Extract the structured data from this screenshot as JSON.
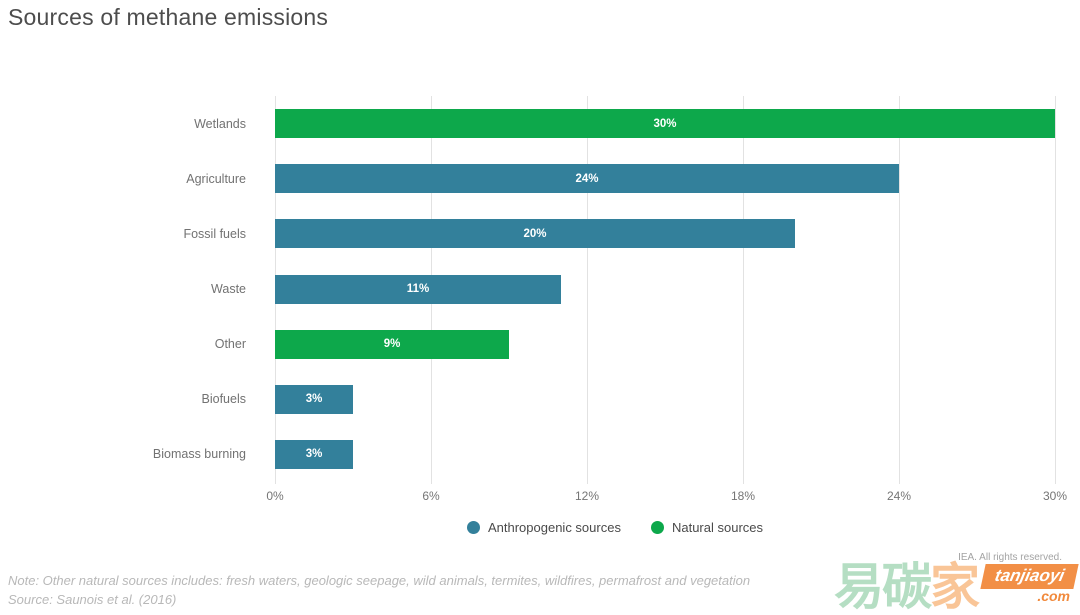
{
  "title": "Sources of methane emissions",
  "chart_data": {
    "type": "bar",
    "orientation": "horizontal",
    "title": "Sources of methane emissions",
    "categories": [
      "Wetlands",
      "Agriculture",
      "Fossil fuels",
      "Waste",
      "Other",
      "Biofuels",
      "Biomass burning"
    ],
    "values": [
      30,
      24,
      20,
      11,
      9,
      3,
      3
    ],
    "value_labels": [
      "30%",
      "24%",
      "20%",
      "11%",
      "9%",
      "3%",
      "3%"
    ],
    "series_of": [
      "natural",
      "anthropogenic",
      "anthropogenic",
      "anthropogenic",
      "natural",
      "anthropogenic",
      "anthropogenic"
    ],
    "xlim": [
      0,
      30
    ],
    "x_ticks": [
      "0%",
      "6%",
      "12%",
      "18%",
      "24%",
      "30%"
    ],
    "x_tick_values": [
      0,
      6,
      12,
      18,
      24,
      30
    ],
    "grid": true,
    "legend_position": "bottom-center",
    "legend": [
      {
        "key": "anthropogenic",
        "label": "Anthropogenic sources",
        "color": "#33809b"
      },
      {
        "key": "natural",
        "label": "Natural sources",
        "color": "#0da84b"
      }
    ],
    "colors": {
      "anthropogenic": "#33809b",
      "natural": "#0da84b"
    },
    "bar_label_color": "#ffffff",
    "gridline_color": "#e2e2e2"
  },
  "note": "Note: Other natural sources includes: fresh waters, geologic seepage, wild animals, termites, wildfires, permafrost and vegetation",
  "source": "Source: Saunois et al. (2016)",
  "watermark": {
    "rights": "IEA. All rights reserved.",
    "cn_green": "易碳",
    "cn_orange": "家",
    "brand": "tanjiaoyi",
    "domain": ".com"
  }
}
